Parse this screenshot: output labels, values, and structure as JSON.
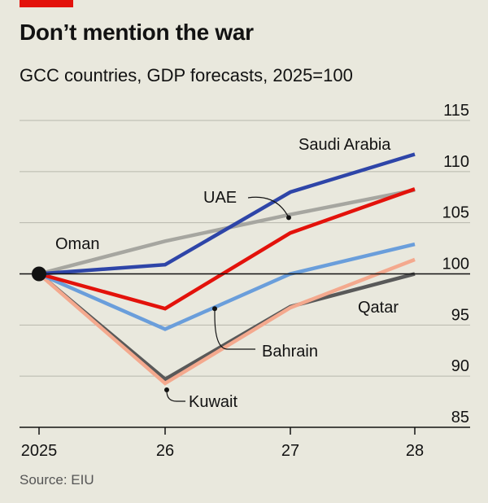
{
  "title": "Don’t mention the war",
  "subtitle": "GCC countries, GDP forecasts, 2025=100",
  "source": "Source: EIU",
  "colors": {
    "background": "#e9e8dd",
    "accent": "#e3120b",
    "grid": "#b7b7ad",
    "baseline": "#121212"
  },
  "chart_data": {
    "type": "line",
    "x": [
      "2025",
      "26",
      "27",
      "28"
    ],
    "xlabel": "",
    "ylabel": "",
    "ylim": [
      85,
      115
    ],
    "yticks": [
      85,
      90,
      95,
      100,
      105,
      110,
      115
    ],
    "yaxis_position": "right",
    "grid": true,
    "baseline": 100,
    "series": [
      {
        "name": "Oman",
        "color": "#a6a6a0",
        "values": [
          100,
          103.2,
          105.8,
          108.2
        ]
      },
      {
        "name": "Qatar",
        "color": "#595959",
        "values": [
          100,
          89.7,
          96.8,
          100
        ]
      },
      {
        "name": "Kuwait",
        "color": "#f4a98e",
        "values": [
          100,
          89.3,
          96.7,
          101.4
        ]
      },
      {
        "name": "Bahrain",
        "color": "#6a9edb",
        "values": [
          100,
          94.6,
          100,
          102.9
        ]
      },
      {
        "name": "UAE",
        "color": "#e3120b",
        "values": [
          100,
          96.6,
          104,
          108.3
        ]
      },
      {
        "name": "Saudi Arabia",
        "color": "#2e45a8",
        "values": [
          100,
          100.9,
          108,
          111.7
        ]
      }
    ]
  }
}
